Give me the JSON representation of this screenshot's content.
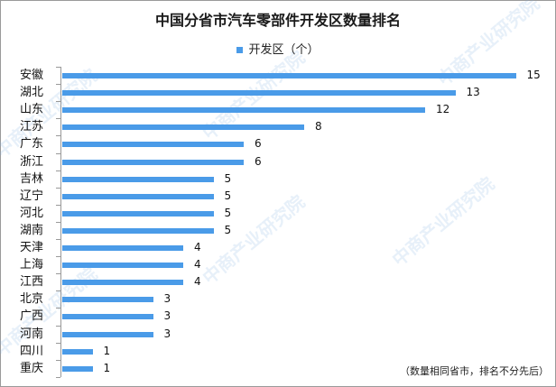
{
  "chart_data": {
    "type": "bar",
    "orientation": "horizontal",
    "title": "中国分省市汽车零部件开发区数量排名",
    "legend": [
      "开发区（个）"
    ],
    "legend_position": "top",
    "categories": [
      "安徽",
      "湖北",
      "山东",
      "江苏",
      "广东",
      "浙江",
      "吉林",
      "辽宁",
      "河北",
      "湖南",
      "天津",
      "上海",
      "江西",
      "北京",
      "广西",
      "河南",
      "四川",
      "重庆"
    ],
    "series": [
      {
        "name": "开发区（个）",
        "values": [
          15,
          13,
          12,
          8,
          6,
          6,
          5,
          5,
          5,
          5,
          4,
          4,
          4,
          3,
          3,
          3,
          1,
          1
        ]
      }
    ],
    "values": [
      15,
      13,
      12,
      8,
      6,
      6,
      5,
      5,
      5,
      5,
      4,
      4,
      4,
      3,
      3,
      3,
      1,
      1
    ],
    "xlabel": "",
    "ylabel": "",
    "xlim": [
      0,
      15
    ],
    "grid": false,
    "data_labels": true,
    "bar_color": "#4a9be8",
    "annotation": "（数量相同省市，排名不分先后）"
  },
  "watermark": "中商产业研究院"
}
